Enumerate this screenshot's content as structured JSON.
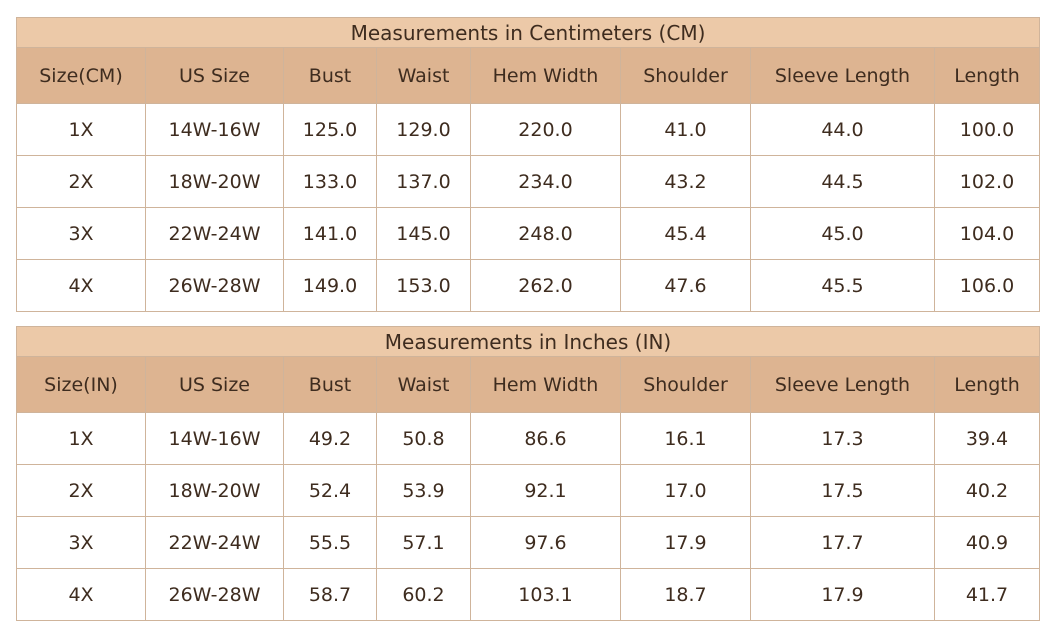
{
  "tables": [
    {
      "title": "Measurements in Centimeters (CM)",
      "headers": [
        "Size(CM)",
        "US Size",
        "Bust",
        "Waist",
        "Hem Width",
        "Shoulder",
        "Sleeve Length",
        "Length"
      ],
      "rows": [
        [
          "1X",
          "14W-16W",
          "125.0",
          "129.0",
          "220.0",
          "41.0",
          "44.0",
          "100.0"
        ],
        [
          "2X",
          "18W-20W",
          "133.0",
          "137.0",
          "234.0",
          "43.2",
          "44.5",
          "102.0"
        ],
        [
          "3X",
          "22W-24W",
          "141.0",
          "145.0",
          "248.0",
          "45.4",
          "45.0",
          "104.0"
        ],
        [
          "4X",
          "26W-28W",
          "149.0",
          "153.0",
          "262.0",
          "47.6",
          "45.5",
          "106.0"
        ]
      ]
    },
    {
      "title": "Measurements in Inches (IN)",
      "headers": [
        "Size(IN)",
        "US Size",
        "Bust",
        "Waist",
        "Hem Width",
        "Shoulder",
        "Sleeve Length",
        "Length"
      ],
      "rows": [
        [
          "1X",
          "14W-16W",
          "49.2",
          "50.8",
          "86.6",
          "16.1",
          "17.3",
          "39.4"
        ],
        [
          "2X",
          "18W-20W",
          "52.4",
          "53.9",
          "92.1",
          "17.0",
          "17.5",
          "40.2"
        ],
        [
          "3X",
          "22W-24W",
          "55.5",
          "57.1",
          "97.6",
          "17.9",
          "17.7",
          "40.9"
        ],
        [
          "4X",
          "26W-28W",
          "58.7",
          "60.2",
          "103.1",
          "18.7",
          "17.9",
          "41.7"
        ]
      ]
    }
  ]
}
